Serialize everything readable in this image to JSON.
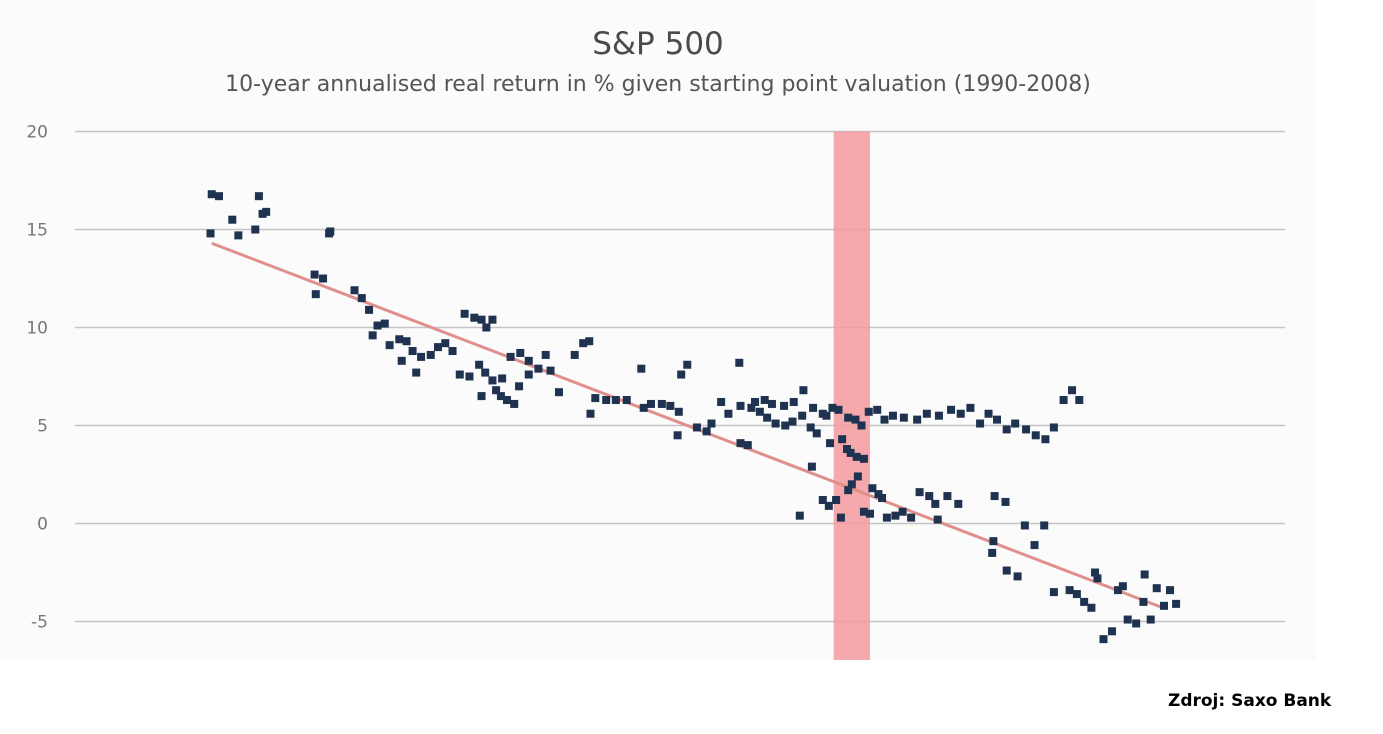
{
  "chart_data": {
    "type": "scatter",
    "title": "S&P 500",
    "subtitle": "10-year annualised real return in % given starting point valuation (1990-2008)",
    "xlabel": "",
    "ylabel": "",
    "ylim": [
      -6.9,
      20
    ],
    "xlim": [
      0,
      100
    ],
    "yticks": [
      "20",
      "15",
      "10",
      "5",
      "0",
      "-5"
    ],
    "ytick_values": [
      20,
      15,
      10,
      5,
      0,
      -5
    ],
    "grid": true,
    "highlight_band": {
      "x_range": [
        62.7,
        65.7
      ],
      "color": "#f59a9e"
    },
    "trendline": {
      "x": [
        11.3,
        89.9
      ],
      "y": [
        14.3,
        -4.3
      ],
      "color": "#e0908c"
    },
    "point_color": "#1f3350",
    "points": [
      [
        11.3,
        16.8
      ],
      [
        11.9,
        16.7
      ],
      [
        15.2,
        16.7
      ],
      [
        11.2,
        14.8
      ],
      [
        13.0,
        15.5
      ],
      [
        13.5,
        14.7
      ],
      [
        14.9,
        15.0
      ],
      [
        15.8,
        15.9
      ],
      [
        15.5,
        15.8
      ],
      [
        19.8,
        12.7
      ],
      [
        21.0,
        14.8
      ],
      [
        21.1,
        14.9
      ],
      [
        20.5,
        12.5
      ],
      [
        19.9,
        11.7
      ],
      [
        23.1,
        11.9
      ],
      [
        23.7,
        11.5
      ],
      [
        24.3,
        10.9
      ],
      [
        24.6,
        9.6
      ],
      [
        25.0,
        10.1
      ],
      [
        25.6,
        10.2
      ],
      [
        26.0,
        9.1
      ],
      [
        26.8,
        9.4
      ],
      [
        27.4,
        9.3
      ],
      [
        27.9,
        8.8
      ],
      [
        28.6,
        8.5
      ],
      [
        29.4,
        8.6
      ],
      [
        27.0,
        8.3
      ],
      [
        28.2,
        7.7
      ],
      [
        30.0,
        9.0
      ],
      [
        30.6,
        9.2
      ],
      [
        31.2,
        8.8
      ],
      [
        31.8,
        7.6
      ],
      [
        32.6,
        7.5
      ],
      [
        32.2,
        10.7
      ],
      [
        33.0,
        10.5
      ],
      [
        33.6,
        10.4
      ],
      [
        34.0,
        10.0
      ],
      [
        34.5,
        10.4
      ],
      [
        33.4,
        8.1
      ],
      [
        33.9,
        7.7
      ],
      [
        34.5,
        7.3
      ],
      [
        35.3,
        7.4
      ],
      [
        34.8,
        6.8
      ],
      [
        35.2,
        6.5
      ],
      [
        35.7,
        6.3
      ],
      [
        36.3,
        6.1
      ],
      [
        36.7,
        7.0
      ],
      [
        37.5,
        7.6
      ],
      [
        38.3,
        7.9
      ],
      [
        39.3,
        7.8
      ],
      [
        36.0,
        8.5
      ],
      [
        36.8,
        8.7
      ],
      [
        37.5,
        8.3
      ],
      [
        38.9,
        8.6
      ],
      [
        33.6,
        6.5
      ],
      [
        40.0,
        6.7
      ],
      [
        41.3,
        8.6
      ],
      [
        42.0,
        9.2
      ],
      [
        42.5,
        9.3
      ],
      [
        43.0,
        6.4
      ],
      [
        43.9,
        6.3
      ],
      [
        44.7,
        6.3
      ],
      [
        45.6,
        6.3
      ],
      [
        42.6,
        5.6
      ],
      [
        47.0,
        5.9
      ],
      [
        46.8,
        7.9
      ],
      [
        48.5,
        6.1
      ],
      [
        49.2,
        6.0
      ],
      [
        49.9,
        5.7
      ],
      [
        47.6,
        6.1
      ],
      [
        50.1,
        7.6
      ],
      [
        50.6,
        8.1
      ],
      [
        49.8,
        4.5
      ],
      [
        51.4,
        4.9
      ],
      [
        52.2,
        4.7
      ],
      [
        53.4,
        6.2
      ],
      [
        52.6,
        5.1
      ],
      [
        54.0,
        5.6
      ],
      [
        55.0,
        4.1
      ],
      [
        55.6,
        4.0
      ],
      [
        54.9,
        8.2
      ],
      [
        55.0,
        6.0
      ],
      [
        55.9,
        5.9
      ],
      [
        56.6,
        5.7
      ],
      [
        57.2,
        5.4
      ],
      [
        57.9,
        5.1
      ],
      [
        58.7,
        5.0
      ],
      [
        59.3,
        5.2
      ],
      [
        60.1,
        5.5
      ],
      [
        60.8,
        4.9
      ],
      [
        56.2,
        6.2
      ],
      [
        57.0,
        6.3
      ],
      [
        57.6,
        6.1
      ],
      [
        58.6,
        6.0
      ],
      [
        59.4,
        6.2
      ],
      [
        60.2,
        6.8
      ],
      [
        61.0,
        5.9
      ],
      [
        61.8,
        5.6
      ],
      [
        62.6,
        5.9
      ],
      [
        63.1,
        5.8
      ],
      [
        62.1,
        5.5
      ],
      [
        61.3,
        4.6
      ],
      [
        62.4,
        4.1
      ],
      [
        63.4,
        4.3
      ],
      [
        64.1,
        3.6
      ],
      [
        62.9,
        1.2
      ],
      [
        63.9,
        1.7
      ],
      [
        60.9,
        2.9
      ],
      [
        63.8,
        3.8
      ],
      [
        64.6,
        3.4
      ],
      [
        65.2,
        3.3
      ],
      [
        65.9,
        1.8
      ],
      [
        66.4,
        1.5
      ],
      [
        67.1,
        0.3
      ],
      [
        67.8,
        0.4
      ],
      [
        68.4,
        0.6
      ],
      [
        69.1,
        0.3
      ],
      [
        69.8,
        1.6
      ],
      [
        70.6,
        1.4
      ],
      [
        71.3,
        0.2
      ],
      [
        72.1,
        1.4
      ],
      [
        73.0,
        1.0
      ],
      [
        63.3,
        0.3
      ],
      [
        66.7,
        1.3
      ],
      [
        64.7,
        2.4
      ],
      [
        65.7,
        0.5
      ],
      [
        71.1,
        1.0
      ],
      [
        76.0,
        1.4
      ],
      [
        76.9,
        1.1
      ],
      [
        75.9,
        -0.9
      ],
      [
        75.8,
        -1.5
      ],
      [
        77.0,
        -2.4
      ],
      [
        77.9,
        -2.7
      ],
      [
        78.5,
        -0.1
      ],
      [
        79.3,
        -1.1
      ],
      [
        80.1,
        -0.1
      ],
      [
        80.9,
        -3.5
      ],
      [
        82.2,
        -3.4
      ],
      [
        82.8,
        -3.6
      ],
      [
        83.4,
        -4.0
      ],
      [
        84.0,
        -4.3
      ],
      [
        84.5,
        -2.8
      ],
      [
        85.0,
        -5.9
      ],
      [
        85.7,
        -5.5
      ],
      [
        86.6,
        -3.2
      ],
      [
        87.0,
        -4.9
      ],
      [
        87.7,
        -5.1
      ],
      [
        88.3,
        -4.0
      ],
      [
        88.9,
        -4.9
      ],
      [
        90.0,
        -4.2
      ],
      [
        88.4,
        -2.6
      ],
      [
        89.4,
        -3.3
      ],
      [
        90.5,
        -3.4
      ],
      [
        91.0,
        -4.1
      ],
      [
        84.3,
        -2.5
      ],
      [
        86.2,
        -3.4
      ],
      [
        67.6,
        5.5
      ],
      [
        68.5,
        5.4
      ],
      [
        69.6,
        5.3
      ],
      [
        70.4,
        5.6
      ],
      [
        71.4,
        5.5
      ],
      [
        72.4,
        5.8
      ],
      [
        73.2,
        5.6
      ],
      [
        74.0,
        5.9
      ],
      [
        74.8,
        5.1
      ],
      [
        75.5,
        5.6
      ],
      [
        76.2,
        5.3
      ],
      [
        77.0,
        4.8
      ],
      [
        77.7,
        5.1
      ],
      [
        78.6,
        4.8
      ],
      [
        79.4,
        4.5
      ],
      [
        80.2,
        4.3
      ],
      [
        80.9,
        4.9
      ],
      [
        81.7,
        6.3
      ],
      [
        82.4,
        6.8
      ],
      [
        83.0,
        6.3
      ],
      [
        63.9,
        5.4
      ],
      [
        64.5,
        5.3
      ],
      [
        65.0,
        5.0
      ],
      [
        65.6,
        5.7
      ],
      [
        66.3,
        5.8
      ],
      [
        66.9,
        5.3
      ],
      [
        62.3,
        0.9
      ],
      [
        64.2,
        2.0
      ],
      [
        65.2,
        0.6
      ],
      [
        59.9,
        0.4
      ],
      [
        61.8,
        1.2
      ]
    ]
  },
  "source": "Zdroj: Saxo Bank"
}
